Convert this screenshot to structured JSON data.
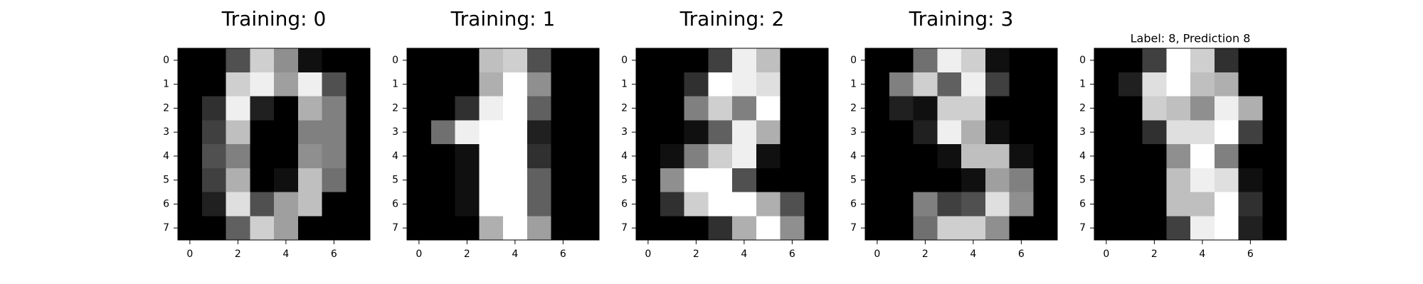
{
  "chart_data": [
    {
      "type": "heatmap",
      "title": "Training: 0",
      "colormap": "gray",
      "vmin": 0,
      "vmax": 16,
      "x_ticks": [
        "0",
        "2",
        "4",
        "6"
      ],
      "y_ticks": [
        "0",
        "1",
        "2",
        "3",
        "4",
        "5",
        "6",
        "7"
      ],
      "values": [
        [
          0,
          0,
          5,
          13,
          9,
          1,
          0,
          0
        ],
        [
          0,
          0,
          13,
          15,
          10,
          15,
          5,
          0
        ],
        [
          0,
          3,
          15,
          2,
          0,
          11,
          8,
          0
        ],
        [
          0,
          4,
          12,
          0,
          0,
          8,
          8,
          0
        ],
        [
          0,
          5,
          8,
          0,
          0,
          9,
          8,
          0
        ],
        [
          0,
          4,
          11,
          0,
          1,
          12,
          7,
          0
        ],
        [
          0,
          2,
          14,
          5,
          10,
          12,
          0,
          0
        ],
        [
          0,
          0,
          6,
          13,
          10,
          0,
          0,
          0
        ]
      ]
    },
    {
      "type": "heatmap",
      "title": "Training: 1",
      "colormap": "gray",
      "vmin": 0,
      "vmax": 16,
      "x_ticks": [
        "0",
        "2",
        "4",
        "6"
      ],
      "y_ticks": [
        "0",
        "1",
        "2",
        "3",
        "4",
        "5",
        "6",
        "7"
      ],
      "values": [
        [
          0,
          0,
          0,
          12,
          13,
          5,
          0,
          0
        ],
        [
          0,
          0,
          0,
          11,
          16,
          9,
          0,
          0
        ],
        [
          0,
          0,
          3,
          15,
          16,
          6,
          0,
          0
        ],
        [
          0,
          7,
          15,
          16,
          16,
          2,
          0,
          0
        ],
        [
          0,
          0,
          1,
          16,
          16,
          3,
          0,
          0
        ],
        [
          0,
          0,
          1,
          16,
          16,
          6,
          0,
          0
        ],
        [
          0,
          0,
          1,
          16,
          16,
          6,
          0,
          0
        ],
        [
          0,
          0,
          0,
          11,
          16,
          10,
          0,
          0
        ]
      ]
    },
    {
      "type": "heatmap",
      "title": "Training: 2",
      "colormap": "gray",
      "vmin": 0,
      "vmax": 16,
      "x_ticks": [
        "0",
        "2",
        "4",
        "6"
      ],
      "y_ticks": [
        "0",
        "1",
        "2",
        "3",
        "4",
        "5",
        "6",
        "7"
      ],
      "values": [
        [
          0,
          0,
          0,
          4,
          15,
          12,
          0,
          0
        ],
        [
          0,
          0,
          3,
          16,
          15,
          14,
          0,
          0
        ],
        [
          0,
          0,
          8,
          13,
          8,
          16,
          0,
          0
        ],
        [
          0,
          0,
          1,
          6,
          15,
          11,
          0,
          0
        ],
        [
          0,
          1,
          8,
          13,
          15,
          1,
          0,
          0
        ],
        [
          0,
          9,
          16,
          16,
          5,
          0,
          0,
          0
        ],
        [
          0,
          3,
          13,
          16,
          16,
          11,
          5,
          0
        ],
        [
          0,
          0,
          0,
          3,
          11,
          16,
          9,
          0
        ]
      ]
    },
    {
      "type": "heatmap",
      "title": "Training: 3",
      "colormap": "gray",
      "vmin": 0,
      "vmax": 16,
      "x_ticks": [
        "0",
        "2",
        "4",
        "6"
      ],
      "y_ticks": [
        "0",
        "1",
        "2",
        "3",
        "4",
        "5",
        "6",
        "7"
      ],
      "values": [
        [
          0,
          0,
          7,
          15,
          13,
          1,
          0,
          0
        ],
        [
          0,
          8,
          13,
          6,
          15,
          4,
          0,
          0
        ],
        [
          0,
          2,
          1,
          13,
          13,
          0,
          0,
          0
        ],
        [
          0,
          0,
          2,
          15,
          11,
          1,
          0,
          0
        ],
        [
          0,
          0,
          0,
          1,
          12,
          12,
          1,
          0
        ],
        [
          0,
          0,
          0,
          0,
          1,
          10,
          8,
          0
        ],
        [
          0,
          0,
          8,
          4,
          5,
          14,
          9,
          0
        ],
        [
          0,
          0,
          7,
          13,
          13,
          9,
          0,
          0
        ]
      ]
    },
    {
      "type": "heatmap",
      "title": "Label: 8, Prediction 8",
      "colormap": "gray",
      "vmin": 0,
      "vmax": 16,
      "x_ticks": [
        "0",
        "2",
        "4",
        "6"
      ],
      "y_ticks": [
        "0",
        "1",
        "2",
        "3",
        "4",
        "5",
        "6",
        "7"
      ],
      "values": [
        [
          0,
          0,
          4,
          16,
          13,
          3,
          0,
          0
        ],
        [
          0,
          2,
          14,
          16,
          12,
          11,
          0,
          0
        ],
        [
          0,
          0,
          13,
          12,
          9,
          15,
          11,
          0
        ],
        [
          0,
          0,
          3,
          14,
          14,
          16,
          4,
          0
        ],
        [
          0,
          0,
          0,
          9,
          16,
          8,
          0,
          0
        ],
        [
          0,
          0,
          0,
          12,
          15,
          14,
          1,
          0
        ],
        [
          0,
          0,
          0,
          12,
          12,
          16,
          3,
          0
        ],
        [
          0,
          0,
          0,
          4,
          15,
          16,
          2,
          0
        ]
      ]
    }
  ]
}
